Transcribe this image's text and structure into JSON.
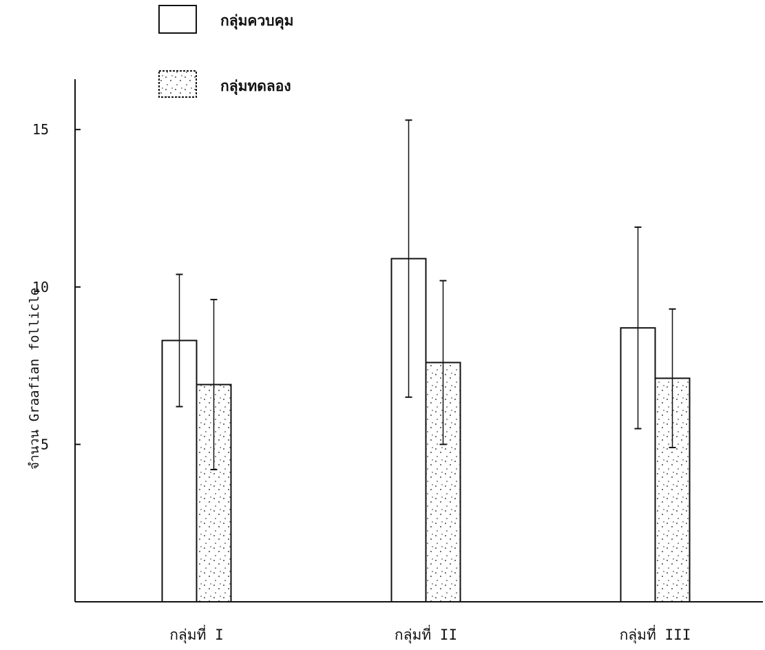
{
  "chart_data": {
    "type": "bar",
    "categories": [
      "กลุ่มที่ I",
      "กลุ่มที่ II",
      "กลุ่มที่ III"
    ],
    "series": [
      {
        "name": "กลุ่มควบคุม",
        "values": [
          8.3,
          10.9,
          8.7
        ],
        "error": [
          2.1,
          4.4,
          3.2
        ],
        "pattern": "open"
      },
      {
        "name": "กลุ่มทดลอง",
        "values": [
          6.9,
          7.6,
          7.1
        ],
        "error": [
          2.7,
          2.6,
          2.2
        ],
        "pattern": "stippled"
      }
    ],
    "ylabel": "จำนวน Graafian follicle",
    "xlabel": "",
    "title": "",
    "ylim": [
      0,
      16.6
    ],
    "yticks": [
      5,
      10,
      15
    ],
    "grid": false,
    "legend_position": "top-left",
    "colors": {
      "ink": "#111111",
      "background": "#ffffff"
    }
  }
}
